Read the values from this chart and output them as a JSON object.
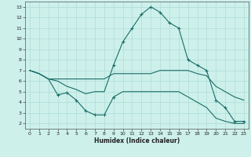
{
  "title": "",
  "xlabel": "Humidex (Indice chaleur)",
  "bg_color": "#cdf0eb",
  "grid_color": "#b0ddd8",
  "line_color": "#1a6e66",
  "xlim": [
    -0.5,
    23.5
  ],
  "ylim": [
    1.5,
    13.5
  ],
  "xticks": [
    0,
    1,
    2,
    3,
    4,
    5,
    6,
    7,
    8,
    9,
    10,
    11,
    12,
    13,
    14,
    15,
    16,
    17,
    18,
    19,
    20,
    21,
    22,
    23
  ],
  "yticks": [
    2,
    3,
    4,
    5,
    6,
    7,
    8,
    9,
    10,
    11,
    12,
    13
  ],
  "line1_x": [
    0,
    1,
    2,
    3,
    4,
    5,
    6,
    7,
    8,
    9,
    10,
    11,
    12,
    13,
    14,
    15,
    16,
    17,
    18,
    19,
    20,
    21,
    22,
    23
  ],
  "line1_y": [
    7.0,
    6.7,
    6.2,
    6.2,
    6.2,
    6.2,
    6.2,
    6.2,
    6.2,
    6.7,
    6.7,
    6.7,
    6.7,
    6.7,
    7.0,
    7.0,
    7.0,
    7.0,
    6.7,
    6.5,
    5.5,
    5.0,
    4.5,
    4.2
  ],
  "line2_x": [
    0,
    1,
    2,
    3,
    4,
    5,
    6,
    7,
    8,
    9,
    10,
    11,
    12,
    13,
    14,
    15,
    16,
    17,
    18,
    19,
    20,
    21,
    22,
    23
  ],
  "line2_y": [
    7.0,
    6.7,
    6.2,
    6.0,
    5.5,
    5.2,
    4.8,
    5.0,
    5.0,
    7.5,
    9.7,
    11.0,
    12.3,
    13.0,
    12.5,
    11.5,
    11.0,
    8.0,
    7.5,
    7.0,
    4.2,
    3.5,
    2.2,
    2.2
  ],
  "line3_x": [
    0,
    1,
    2,
    3,
    4,
    5,
    6,
    7,
    8,
    9,
    10,
    11,
    12,
    13,
    14,
    15,
    16,
    17,
    18,
    19,
    20,
    21,
    22,
    23
  ],
  "line3_y": [
    7.0,
    6.7,
    6.2,
    4.7,
    4.9,
    4.2,
    3.2,
    2.8,
    2.8,
    4.5,
    5.0,
    5.0,
    5.0,
    5.0,
    5.0,
    5.0,
    5.0,
    4.5,
    4.0,
    3.5,
    2.5,
    2.2,
    2.0,
    2.0
  ],
  "marker_x2": [
    9,
    10,
    11,
    12,
    13,
    14,
    15,
    16,
    17,
    18,
    19,
    20,
    21,
    22,
    23
  ],
  "marker_y2": [
    7.5,
    9.7,
    11.0,
    12.3,
    13.0,
    12.5,
    11.5,
    11.0,
    8.0,
    7.5,
    7.0,
    4.2,
    3.5,
    2.2,
    2.2
  ],
  "marker_x3": [
    3,
    4,
    5,
    6,
    7,
    8,
    9
  ],
  "marker_y3": [
    4.7,
    4.9,
    4.2,
    3.2,
    2.8,
    2.8,
    4.5
  ]
}
